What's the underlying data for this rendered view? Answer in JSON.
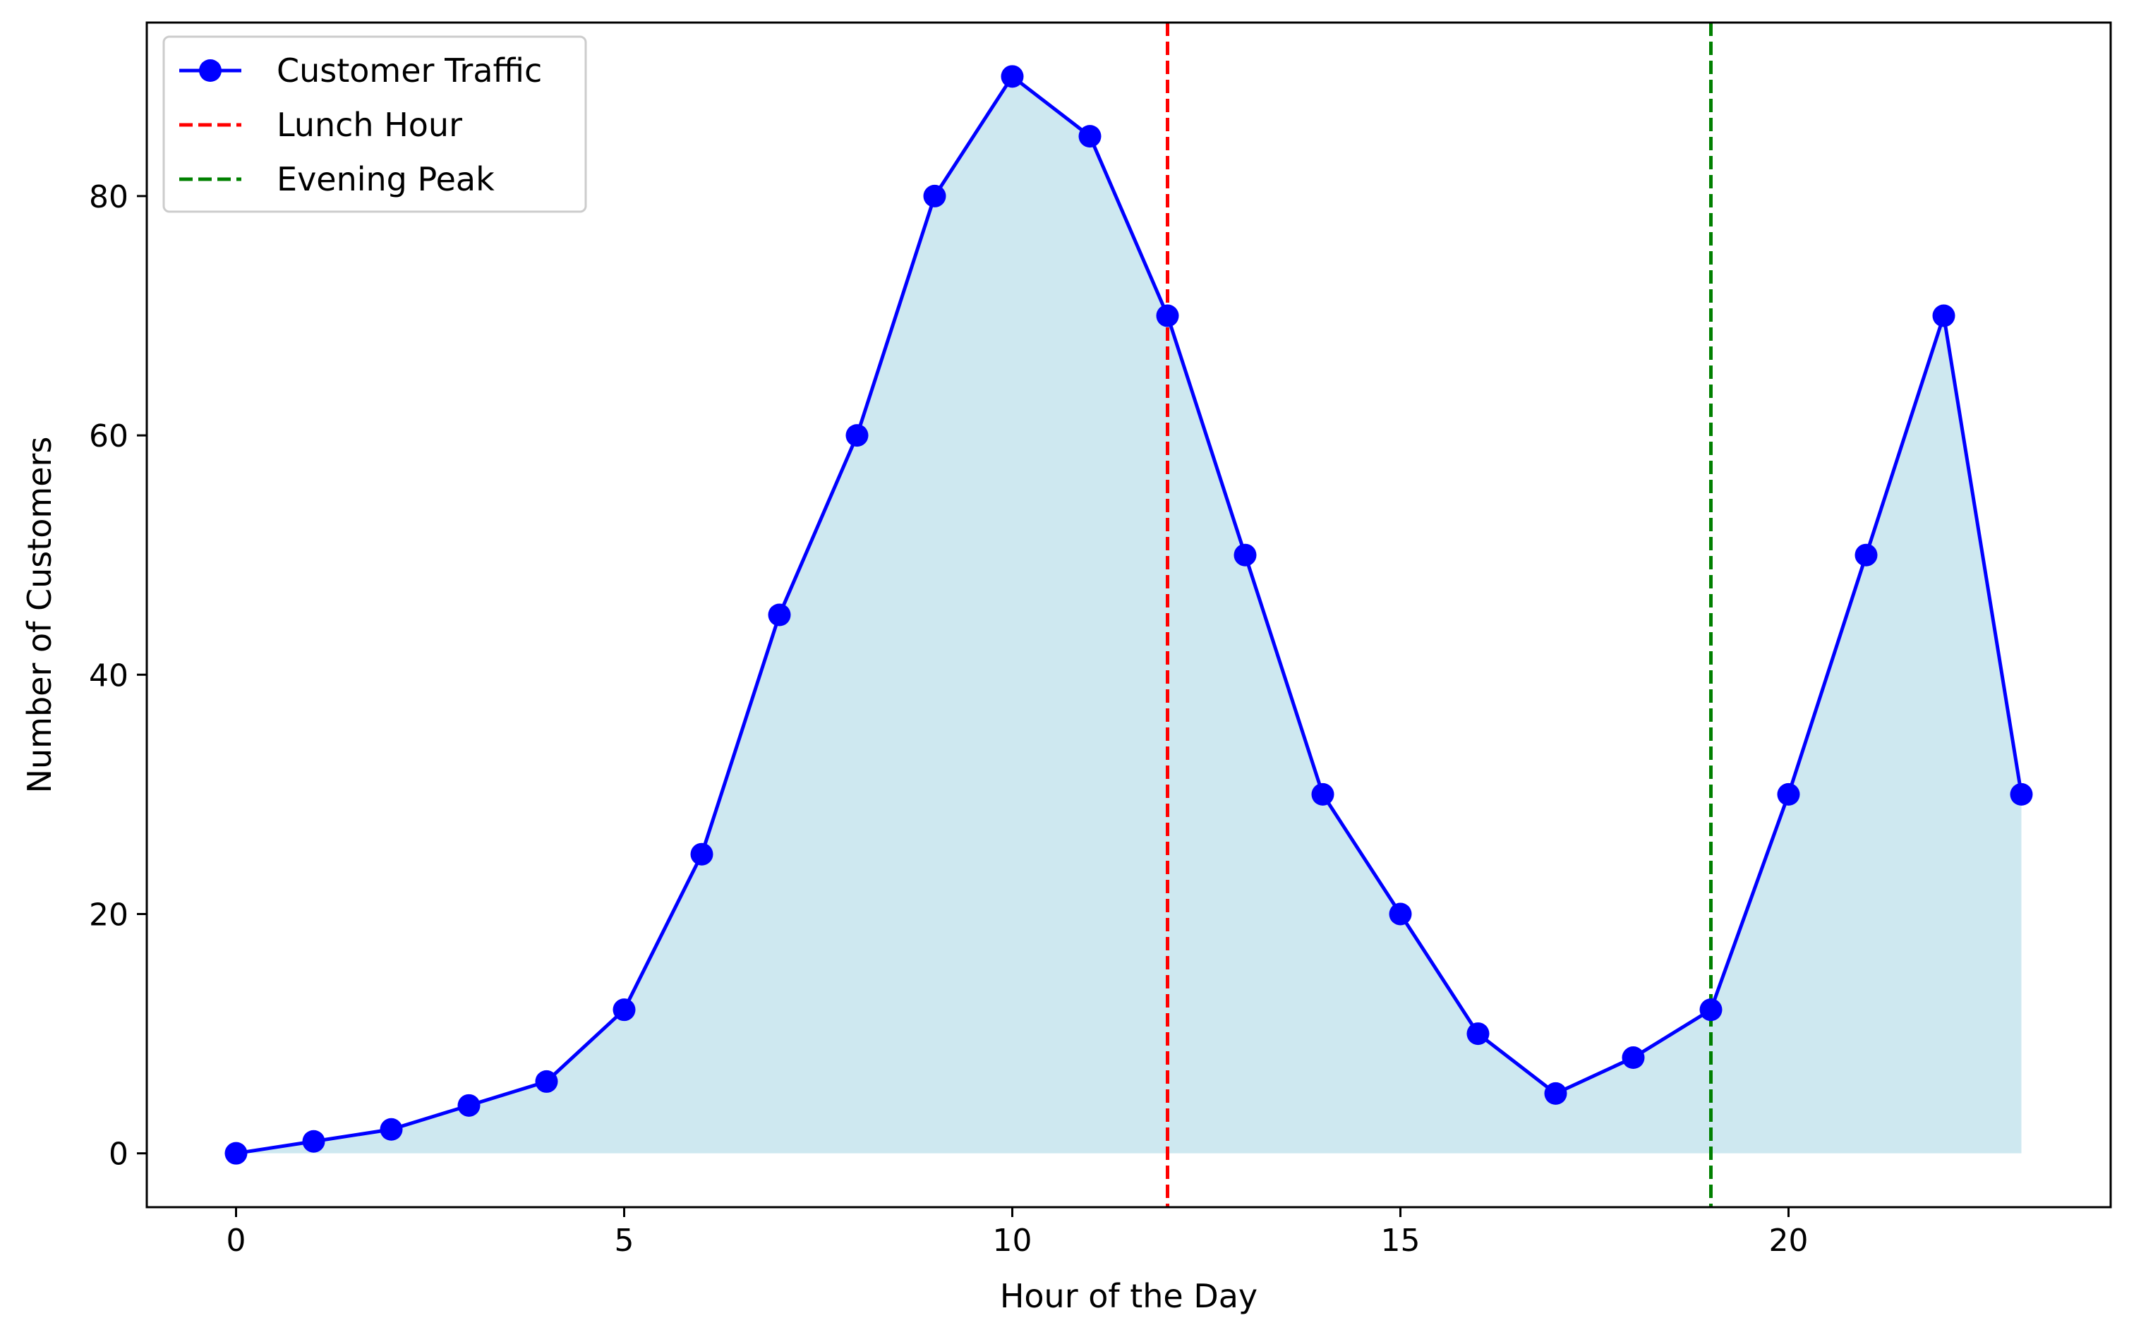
{
  "chart_data": {
    "type": "line",
    "title": "",
    "xlabel": "Hour of the Day",
    "ylabel": "Number of Customers",
    "xlim": [
      -1.15,
      24.15
    ],
    "ylim": [
      -4.5,
      94.5
    ],
    "xticks": [
      0,
      5,
      10,
      15,
      20
    ],
    "yticks": [
      0,
      20,
      40,
      60,
      80
    ],
    "grid": false,
    "legend_position": "top-left",
    "series": [
      {
        "name": "Customer Traffic",
        "x": [
          0,
          1,
          2,
          3,
          4,
          5,
          6,
          7,
          8,
          9,
          10,
          11,
          12,
          13,
          14,
          15,
          16,
          17,
          18,
          19,
          20,
          21,
          22,
          23
        ],
        "y": [
          0,
          1,
          2,
          4,
          6,
          12,
          25,
          45,
          60,
          80,
          90,
          85,
          70,
          50,
          30,
          20,
          10,
          5,
          8,
          12,
          30,
          50,
          70,
          30
        ],
        "color": "#0000ff",
        "marker": "circle",
        "fill": "#add8e6"
      }
    ],
    "vlines": [
      {
        "name": "Lunch Hour",
        "x": 12,
        "color": "#ff0000",
        "style": "dashed"
      },
      {
        "name": "Evening Peak",
        "x": 19,
        "color": "#008000",
        "style": "dashed"
      }
    ],
    "legend": [
      {
        "label": "Customer Traffic",
        "color": "#0000ff",
        "kind": "line-marker"
      },
      {
        "label": "Lunch Hour",
        "color": "#ff0000",
        "kind": "dashed"
      },
      {
        "label": "Evening Peak",
        "color": "#008000",
        "kind": "dashed"
      }
    ]
  }
}
